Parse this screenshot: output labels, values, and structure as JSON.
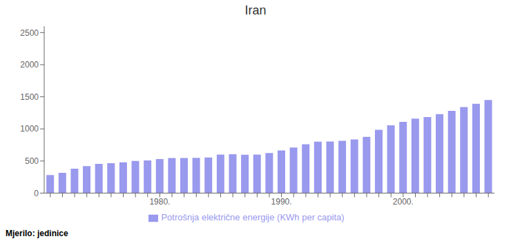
{
  "chart_data": {
    "type": "bar",
    "title": "Iran",
    "categories": [
      null,
      null,
      null,
      null,
      null,
      null,
      null,
      null,
      null,
      "1980.",
      null,
      null,
      null,
      null,
      null,
      null,
      null,
      null,
      null,
      "1990.",
      null,
      null,
      null,
      null,
      null,
      null,
      null,
      null,
      null,
      "2000.",
      null,
      null,
      null,
      null,
      null,
      null,
      null
    ],
    "series": [
      {
        "name": "Potrošnja električne energije (KWh per capita)",
        "color": "#9999ee",
        "values": [
          280,
          315,
          380,
          420,
          455,
          465,
          480,
          500,
          510,
          530,
          545,
          545,
          550,
          555,
          600,
          605,
          598,
          600,
          625,
          665,
          710,
          760,
          800,
          805,
          815,
          835,
          875,
          985,
          1055,
          1110,
          1160,
          1185,
          1230,
          1280,
          1340,
          1390,
          1450
        ]
      }
    ],
    "ylim": [
      0,
      2600
    ],
    "yticks": [
      0,
      500,
      1000,
      1500,
      2000,
      2500
    ],
    "grid": false,
    "annotations": [
      "Mjerilo: jedinice"
    ]
  }
}
